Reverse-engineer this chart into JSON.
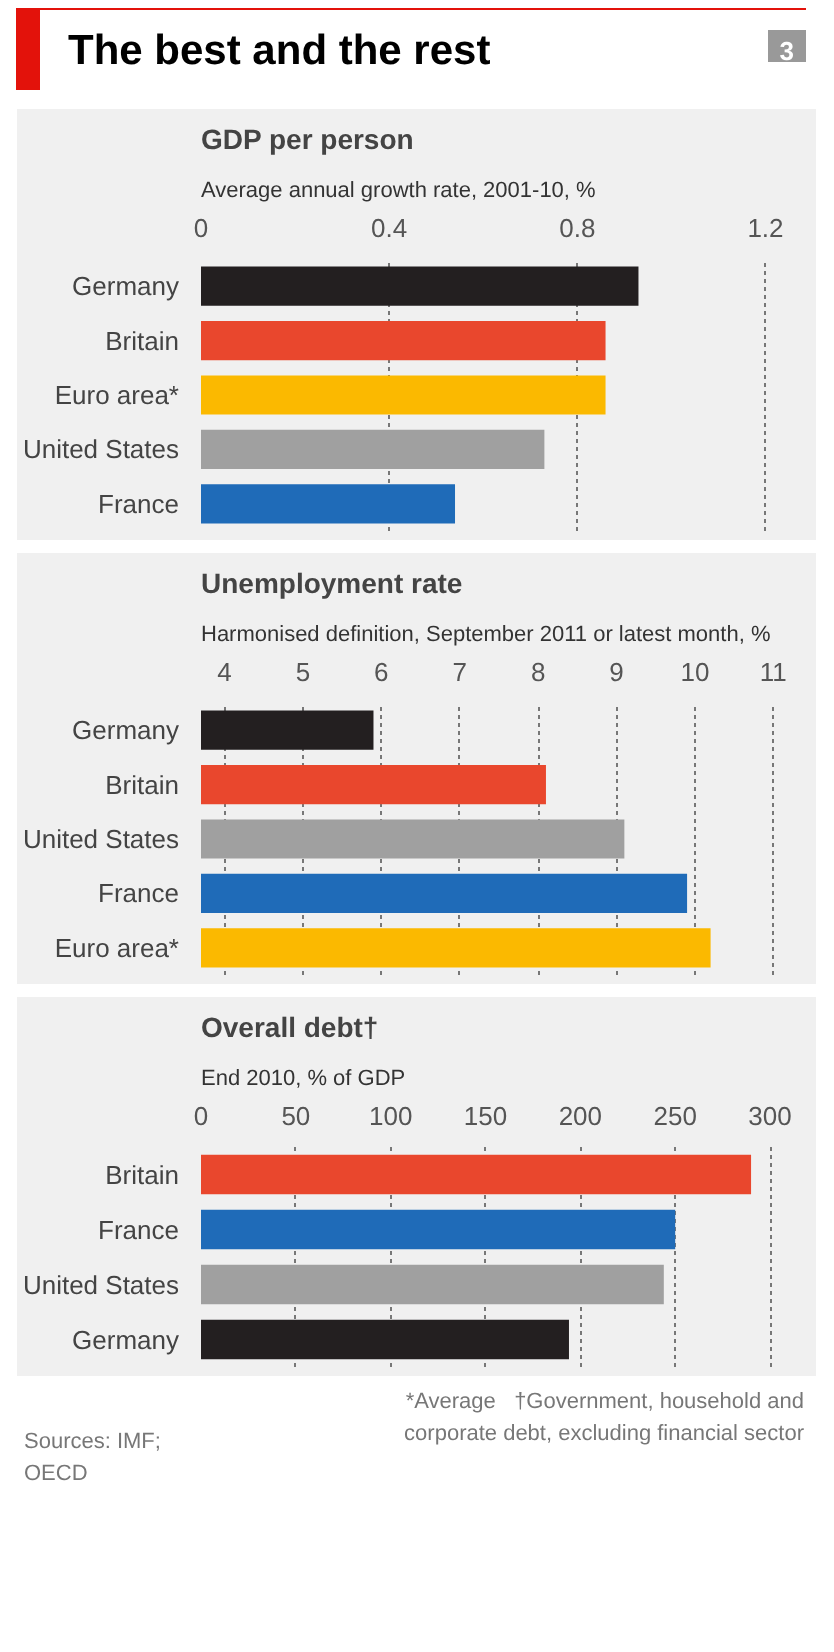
{
  "chart_data": [
    {
      "type": "bar",
      "orientation": "horizontal",
      "title": "GDP per person",
      "subtitle": "Average annual growth rate, 2001-10, %",
      "annotations": [
        "The best and the rest",
        "3"
      ],
      "categories": [
        "Germany",
        "Britain",
        "Euro area*",
        "United States",
        "France"
      ],
      "values": [
        0.93,
        0.86,
        0.86,
        0.73,
        0.54
      ],
      "colors": [
        "#231f20",
        "#e9472d",
        "#fbb900",
        "#a0a0a0",
        "#1f6bb8"
      ],
      "xlim": [
        0,
        1.25
      ],
      "xticks": [
        0,
        0.4,
        0.8,
        1.2
      ],
      "grid": "x",
      "line_style": "dotted"
    },
    {
      "type": "bar",
      "orientation": "horizontal",
      "title": "Unemployment rate",
      "subtitle": "Harmonised definition, September 2011 or latest month, %",
      "categories": [
        "Germany",
        "Britain",
        "United States",
        "France",
        "Euro area*"
      ],
      "values": [
        5.9,
        8.1,
        9.1,
        9.9,
        10.2
      ],
      "colors": [
        "#231f20",
        "#e9472d",
        "#a0a0a0",
        "#1f6bb8",
        "#fbb900"
      ],
      "xlim": [
        3.7,
        11.2
      ],
      "xticks": [
        4,
        5,
        6,
        7,
        8,
        9,
        10,
        11
      ],
      "grid": "x",
      "line_style": "dotted"
    },
    {
      "type": "bar",
      "orientation": "horizontal",
      "title": "Overall debt†",
      "subtitle": "End 2010, % of GDP",
      "annotations": [
        "*Average",
        "†Government, household and corporate debt, excluding financial sector",
        "Sources: IMF; OECD"
      ],
      "categories": [
        "Britain",
        "France",
        "United States",
        "Germany"
      ],
      "values": [
        290,
        250,
        244,
        194
      ],
      "colors": [
        "#e9472d",
        "#1f6bb8",
        "#a0a0a0",
        "#231f20"
      ],
      "xlim": [
        0,
        310
      ],
      "xticks": [
        0,
        50,
        100,
        150,
        200,
        250,
        300
      ],
      "grid": "x",
      "line_style": "dotted"
    }
  ]
}
